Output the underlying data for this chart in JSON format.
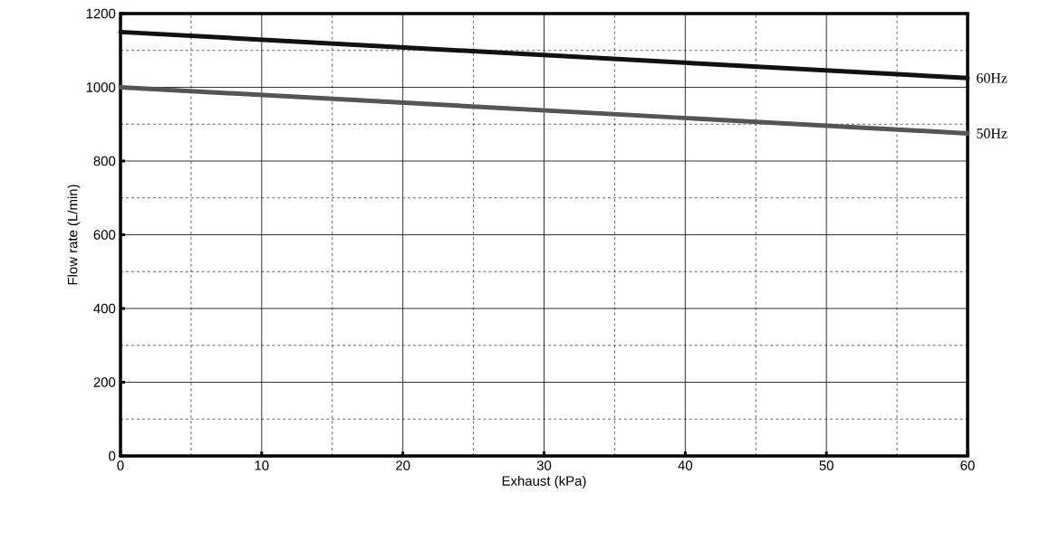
{
  "chart_data": {
    "type": "line",
    "xlabel": "Exhaust (kPa)",
    "ylabel": "Flow rate (L/min)",
    "x": [
      0,
      60
    ],
    "series": [
      {
        "name": "60Hz",
        "color": "#111111",
        "values": [
          1150,
          1025
        ]
      },
      {
        "name": "50Hz",
        "color": "#555555",
        "values": [
          1000,
          875
        ]
      }
    ],
    "xlim": [
      0,
      60
    ],
    "xticks": [
      0,
      10,
      20,
      30,
      40,
      50,
      60
    ],
    "ylim": [
      0,
      1200
    ],
    "yticks": [
      0,
      200,
      400,
      600,
      800,
      1000,
      1200
    ],
    "grid": true,
    "marker": "none",
    "line_style": "solid"
  }
}
